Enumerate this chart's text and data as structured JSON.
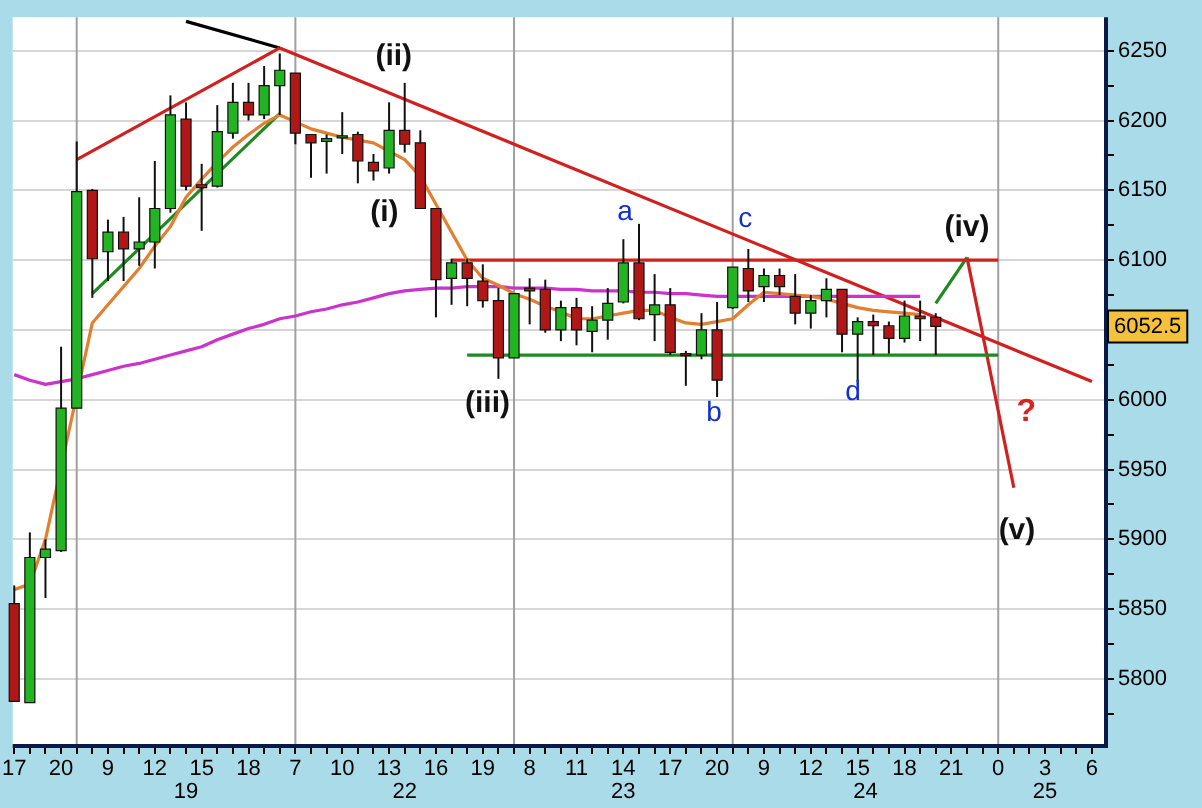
{
  "chart_data": {
    "type": "candlestick",
    "legend": false,
    "grid": "y",
    "ylim": [
      5752,
      6274
    ],
    "categories": [
      "17",
      null,
      null,
      "20",
      null,
      null,
      "9",
      null,
      null,
      "12",
      null,
      null,
      "15",
      null,
      null,
      "18",
      null,
      null,
      "7",
      null,
      null,
      "10",
      null,
      null,
      "13",
      null,
      null,
      "16",
      null,
      null,
      "19",
      null,
      null,
      "8",
      null,
      null,
      "11",
      null,
      null,
      "14",
      null,
      null,
      "17",
      null,
      null,
      "20",
      null,
      null,
      "9",
      null,
      null,
      "12",
      null,
      null,
      "15",
      null,
      null,
      "18",
      null,
      null,
      "21",
      null,
      null,
      "0",
      null,
      null,
      "3",
      null,
      null,
      "6"
    ],
    "yticks": [
      {
        "value": 5775,
        "label": null
      },
      5800,
      {
        "value": 5825,
        "label": null
      },
      5850,
      {
        "value": 5875,
        "label": null
      },
      5900,
      {
        "value": 5925,
        "label": null
      },
      5950,
      {
        "value": 5975,
        "label": null
      },
      6000,
      {
        "value": 6025,
        "label": null
      },
      {
        "value": 6050,
        "label": null
      },
      {
        "value": 6075,
        "label": null
      },
      6100,
      {
        "value": 6125,
        "label": null
      },
      6150,
      {
        "value": 6175,
        "label": null
      },
      6200,
      {
        "value": 6225,
        "label": null
      },
      6250
    ],
    "ohlc": [
      [
        5854,
        5867,
        5784,
        5784
      ],
      [
        5783,
        5905,
        5783,
        5887
      ],
      [
        5887,
        5900,
        5858,
        5893
      ],
      [
        5892,
        6038,
        5891,
        5994
      ],
      [
        5994,
        6185,
        5994,
        6149
      ],
      [
        6150,
        6151,
        6073,
        6101
      ],
      [
        6106,
        6129,
        6085,
        6120
      ],
      [
        6120,
        6131,
        6085,
        6108
      ],
      [
        6108,
        6145,
        6096,
        6113
      ],
      [
        6113,
        6171,
        6094,
        6137
      ],
      [
        6137,
        6218,
        6134,
        6204
      ],
      [
        6201,
        6213,
        6150,
        6153
      ],
      [
        6154,
        6169,
        6121,
        6152
      ],
      [
        6153,
        6211,
        6152,
        6192
      ],
      [
        6191,
        6227,
        6187,
        6213
      ],
      [
        6213,
        6227,
        6200,
        6204
      ],
      [
        6204,
        6239,
        6201,
        6225
      ],
      [
        6225,
        6248,
        6204,
        6236
      ],
      [
        6234,
        6234,
        6183,
        6191
      ],
      [
        6190,
        6190,
        6159,
        6184
      ],
      [
        6185,
        6190,
        6162,
        6187
      ],
      [
        6188,
        6206,
        6176,
        6189
      ],
      [
        6190,
        6192,
        6155,
        6171
      ],
      [
        6170,
        6176,
        6157,
        6164
      ],
      [
        6166,
        6213,
        6162,
        6193
      ],
      [
        6193,
        6227,
        6177,
        6183
      ],
      [
        6184,
        6193,
        6137,
        6137
      ],
      [
        6137,
        6137,
        6059,
        6086
      ],
      [
        6087,
        6101,
        6068,
        6098
      ],
      [
        6098,
        6101,
        6067,
        6087
      ],
      [
        6085,
        6097,
        6066,
        6071
      ],
      [
        6071,
        6080,
        6015,
        6030
      ],
      [
        6030,
        6076,
        6030,
        6076
      ],
      [
        6080,
        6087,
        6054,
        6078
      ],
      [
        6079,
        6086,
        6048,
        6050
      ],
      [
        6050,
        6071,
        6042,
        6066
      ],
      [
        6066,
        6073,
        6039,
        6050
      ],
      [
        6049,
        6067,
        6034,
        6057
      ],
      [
        6057,
        6080,
        6043,
        6069
      ],
      [
        6070,
        6115,
        6069,
        6098
      ],
      [
        6098,
        6126,
        6057,
        6058
      ],
      [
        6061,
        6090,
        6042,
        6068
      ],
      [
        6068,
        6080,
        6032,
        6034
      ],
      [
        6033,
        6035,
        6010,
        6032
      ],
      [
        6032,
        6062,
        6029,
        6050
      ],
      [
        6050,
        6070,
        6002,
        6014
      ],
      [
        6066,
        6095,
        6065,
        6095
      ],
      [
        6094,
        6108,
        6070,
        6078
      ],
      [
        6081,
        6094,
        6070,
        6089
      ],
      [
        6089,
        6094,
        6075,
        6081
      ],
      [
        6074,
        6090,
        6054,
        6062
      ],
      [
        6062,
        6075,
        6051,
        6071
      ],
      [
        6071,
        6087,
        6059,
        6079
      ],
      [
        6079,
        6079,
        6034,
        6047
      ],
      [
        6047,
        6059,
        6013,
        6056
      ],
      [
        6056,
        6061,
        6032,
        6053
      ],
      [
        6053,
        6056,
        6033,
        6044
      ],
      [
        6044,
        6071,
        6041,
        6060
      ],
      [
        6060,
        6071,
        6042,
        6058
      ],
      [
        6059,
        6062,
        6032,
        6052.5
      ],
      null,
      null,
      null,
      null,
      null,
      null,
      null,
      null,
      null,
      null
    ],
    "colors": [
      "#b01818",
      "#22b422",
      "#22b422",
      "#22b422",
      "#22b422",
      "#b01818",
      "#22b422",
      "#b01818",
      "#22b422",
      "#22b422",
      "#22b422",
      "#b01818",
      "#b01818",
      "#22b422",
      "#22b422",
      "#b01818",
      "#22b422",
      "#22b422",
      "#b01818",
      "#b01818",
      "#22b422",
      "#22b422",
      "#b01818",
      "#b01818",
      "#22b422",
      "#b01818",
      "#b01818",
      "#b01818",
      "#22b422",
      "#b01818",
      "#b01818",
      "#b01818",
      "#22b422",
      "#b01818",
      "#b01818",
      "#22b422",
      "#b01818",
      "#22b422",
      "#22b422",
      "#22b422",
      "#b01818",
      "#22b422",
      "#b01818",
      "#b01818",
      "#22b422",
      "#b01818",
      "#22b422",
      "#b01818",
      "#22b422",
      "#b01818",
      "#b01818",
      "#22b422",
      "#22b422",
      "#b01818",
      "#22b422",
      "#b01818",
      "#b01818",
      "#22b422",
      "#b01818",
      "#b01818",
      null,
      null,
      null,
      null,
      null,
      null,
      null,
      null,
      null,
      null
    ],
    "series": [
      {
        "type": "line",
        "color": "#e08030",
        "values": [
          5864,
          5868,
          5900,
          null,
          null,
          6055,
          6068,
          6081,
          6094,
          6110,
          6124,
          6145,
          6158,
          6170,
          6181,
          6190,
          6198,
          6204,
          6199,
          6194,
          6191,
          6188,
          6186,
          6184,
          6178,
          6172,
          6160,
          6140,
          6120,
          6100,
          6087,
          6082,
          6076,
          6072,
          6067,
          6063,
          6058,
          6058,
          6060,
          6062,
          6064,
          6064,
          6059,
          6055,
          6054,
          6056,
          6058,
          6068,
          6077,
          6076,
          6075,
          6074,
          6072,
          6069,
          6066,
          6064,
          6063,
          6062,
          6061,
          null,
          null,
          null,
          null,
          null,
          null,
          null,
          null,
          null,
          null,
          null
        ]
      },
      {
        "type": "line",
        "color": "#cc33cc",
        "values": [
          6018,
          6014,
          6011,
          6013,
          6015,
          6018,
          6021,
          6024,
          6026,
          6029,
          6032,
          6035,
          6038,
          6043,
          6047,
          6051,
          6054,
          6058,
          6060,
          6063,
          6065,
          6068,
          6070,
          6073,
          6076,
          6078,
          6079,
          6080,
          6080,
          6081,
          6081,
          6081,
          6080,
          6080,
          6080,
          6079,
          6079,
          6078,
          6078,
          6078,
          6077,
          6077,
          6076,
          6076,
          6075,
          6074,
          6074,
          6074,
          6074,
          6074,
          6074,
          6074,
          6074,
          6074,
          6074,
          6074,
          6074,
          6074,
          6074,
          null,
          null,
          null,
          null,
          null,
          null,
          null,
          null,
          null,
          null,
          null
        ]
      },
      {
        "type": "line",
        "color": "#d02020",
        "values": [
          null,
          null,
          null,
          null,
          6172,
          null,
          null,
          null,
          null,
          null,
          null,
          null,
          null,
          null,
          null,
          null,
          null,
          6252,
          null,
          null,
          null,
          null,
          null,
          null,
          null,
          null,
          null,
          null,
          null,
          null,
          null,
          null,
          null,
          null,
          null,
          null,
          null,
          null,
          null,
          null,
          null,
          null,
          null,
          null,
          null,
          null,
          null,
          null,
          null,
          null,
          null,
          null,
          null,
          null,
          null,
          null,
          null,
          null,
          null,
          null,
          null,
          null,
          null,
          null,
          null,
          null,
          null,
          null,
          null,
          null
        ]
      },
      {
        "type": "line",
        "color": "#000000",
        "values": [
          null,
          null,
          null,
          null,
          null,
          null,
          null,
          null,
          null,
          null,
          null,
          6271,
          null,
          null,
          null,
          null,
          null,
          6252,
          null,
          null,
          null,
          null,
          null,
          null,
          null,
          null,
          null,
          null,
          null,
          null,
          null,
          null,
          null,
          null,
          null,
          null,
          null,
          null,
          null,
          null,
          null,
          null,
          null,
          null,
          null,
          null,
          null,
          null,
          null,
          null,
          null,
          null,
          null,
          null,
          null,
          null,
          null,
          null,
          null,
          null,
          null,
          null,
          null,
          null,
          null,
          null,
          null,
          null,
          null,
          null
        ]
      },
      {
        "type": "line",
        "color": "#d02020",
        "values": [
          null,
          null,
          null,
          null,
          null,
          null,
          null,
          null,
          null,
          null,
          null,
          null,
          null,
          null,
          null,
          null,
          null,
          6252,
          null,
          null,
          null,
          null,
          null,
          null,
          null,
          null,
          null,
          null,
          null,
          null,
          null,
          null,
          null,
          null,
          null,
          null,
          null,
          null,
          null,
          null,
          null,
          null,
          null,
          null,
          null,
          null,
          null,
          null,
          null,
          null,
          null,
          null,
          null,
          null,
          null,
          null,
          null,
          null,
          null,
          null,
          null,
          null,
          null,
          null,
          null,
          null,
          null,
          null,
          null,
          6013
        ]
      },
      {
        "type": "line",
        "color": "#1f8a1f",
        "values": [
          null,
          null,
          null,
          null,
          null,
          6076,
          null,
          null,
          null,
          null,
          null,
          null,
          null,
          null,
          null,
          null,
          null,
          6205,
          null,
          null,
          null,
          null,
          null,
          null,
          null,
          null,
          null,
          null,
          null,
          null,
          null,
          null,
          null,
          null,
          null,
          null,
          null,
          null,
          null,
          null,
          null,
          null,
          null,
          null,
          null,
          null,
          null,
          null,
          null,
          null,
          null,
          null,
          null,
          null,
          null,
          null,
          null,
          null,
          null,
          null,
          null,
          null,
          null,
          null,
          null,
          null,
          null,
          null,
          null,
          null
        ]
      },
      {
        "type": "line",
        "color": "#d02020",
        "values": [
          null,
          null,
          null,
          null,
          null,
          null,
          null,
          null,
          null,
          null,
          null,
          null,
          null,
          null,
          null,
          null,
          null,
          null,
          null,
          null,
          null,
          null,
          null,
          null,
          null,
          null,
          null,
          null,
          6100,
          null,
          null,
          null,
          null,
          null,
          null,
          null,
          null,
          null,
          null,
          null,
          null,
          null,
          null,
          null,
          null,
          null,
          null,
          null,
          null,
          null,
          null,
          null,
          null,
          null,
          null,
          null,
          null,
          null,
          null,
          null,
          null,
          null,
          null,
          6100,
          null,
          null,
          null,
          null,
          null,
          null
        ]
      },
      {
        "type": "line",
        "color": "#1f8a1f",
        "values": [
          null,
          null,
          null,
          null,
          null,
          null,
          null,
          null,
          null,
          null,
          null,
          null,
          null,
          null,
          null,
          null,
          null,
          null,
          null,
          null,
          null,
          null,
          null,
          null,
          null,
          null,
          null,
          null,
          null,
          6032,
          null,
          null,
          null,
          null,
          null,
          null,
          null,
          null,
          null,
          null,
          null,
          null,
          null,
          null,
          null,
          null,
          null,
          null,
          null,
          null,
          null,
          null,
          null,
          null,
          null,
          null,
          null,
          null,
          null,
          null,
          null,
          null,
          null,
          6032,
          null,
          null,
          null,
          null,
          null,
          null
        ]
      },
      {
        "type": "line",
        "color": "#1f8a1f",
        "values": [
          null,
          null,
          null,
          null,
          null,
          null,
          null,
          null,
          null,
          null,
          null,
          null,
          null,
          null,
          null,
          null,
          null,
          null,
          null,
          null,
          null,
          null,
          null,
          null,
          null,
          null,
          null,
          null,
          null,
          null,
          null,
          null,
          null,
          null,
          null,
          null,
          null,
          null,
          null,
          null,
          null,
          null,
          null,
          null,
          null,
          null,
          null,
          null,
          null,
          null,
          null,
          null,
          null,
          null,
          null,
          null,
          null,
          null,
          null,
          6069,
          null,
          6102,
          null,
          null,
          null,
          null,
          null,
          null,
          null,
          null
        ]
      },
      {
        "type": "line",
        "color": "#d02020",
        "values": [
          null,
          null,
          null,
          null,
          null,
          null,
          null,
          null,
          null,
          null,
          null,
          null,
          null,
          null,
          null,
          null,
          null,
          null,
          null,
          null,
          null,
          null,
          null,
          null,
          null,
          null,
          null,
          null,
          null,
          null,
          null,
          null,
          null,
          null,
          null,
          null,
          null,
          null,
          null,
          null,
          null,
          null,
          null,
          null,
          null,
          null,
          null,
          null,
          null,
          null,
          null,
          null,
          null,
          null,
          null,
          null,
          null,
          null,
          null,
          null,
          null,
          6102,
          null,
          null,
          5937,
          null,
          null,
          null,
          null,
          null
        ]
      }
    ],
    "annotations": [
      "(ii)",
      "(i)",
      "(iii)",
      "a",
      "b",
      "c",
      "d",
      "(iv)",
      "?",
      "(v)",
      "6052.5",
      "19",
      "22",
      "23",
      "24",
      "25"
    ]
  }
}
